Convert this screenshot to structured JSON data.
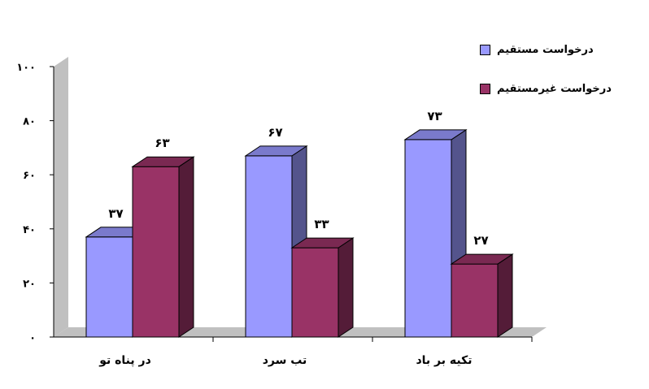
{
  "chart_data": {
    "type": "bar",
    "categories": [
      "در پناه تو",
      "تب سرد",
      "تکیه بر باد"
    ],
    "series": [
      {
        "name": "درخواست مستقیم",
        "values": [
          37,
          67,
          73
        ],
        "labels": [
          "۳۷",
          "۶۷",
          "۷۳"
        ],
        "color": "#9999ff"
      },
      {
        "name": "درخواست غیرمستقیم",
        "values": [
          63,
          33,
          27
        ],
        "labels": [
          "۶۳",
          "۳۳",
          "۲۷"
        ],
        "color": "#993366"
      }
    ],
    "ylim": [
      0,
      100
    ],
    "yticks": [
      0,
      20,
      40,
      60,
      80,
      100
    ],
    "ytick_labels": [
      "۰",
      "۲۰",
      "۴۰",
      "۶۰",
      "۸۰",
      "۱۰۰"
    ],
    "legend_position": "top-right",
    "three_d": true,
    "grid": false
  }
}
